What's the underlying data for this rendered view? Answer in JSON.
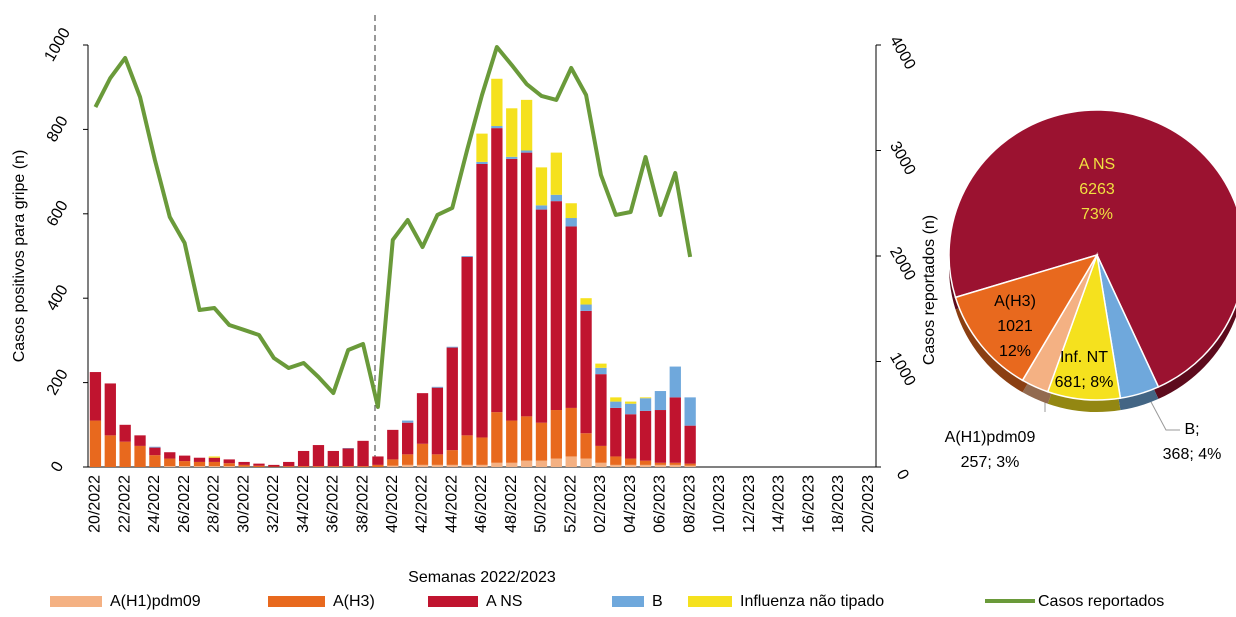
{
  "chart_data": [
    {
      "type": "bar",
      "stacked": true,
      "xlabel": "Semanas 2022/2023",
      "ylabel": "Casos positivos para gripe (n)",
      "y2label": "Casos reportados (n)",
      "categories": [
        "20/2022",
        null,
        "22/2022",
        null,
        "24/2022",
        null,
        "26/2022",
        null,
        "28/2022",
        null,
        "30/2022",
        null,
        "32/2022",
        null,
        "34/2022",
        null,
        "36/2022",
        null,
        "38/2022",
        null,
        "40/2022",
        null,
        "42/2022",
        null,
        "44/2022",
        null,
        "46/2022",
        null,
        "48/2022",
        null,
        "50/2022",
        null,
        "52/2022",
        null,
        "02/2023",
        null,
        "04/2023",
        null,
        "06/2023",
        null,
        "08/2023",
        null,
        "10/2023",
        null,
        "12/2023",
        null,
        "14/2023",
        null,
        "16/2023",
        null,
        "18/2023",
        null,
        "20/2023"
      ],
      "ylim": [
        0,
        1000
      ],
      "yticks": [
        0,
        200,
        400,
        600,
        800,
        1000
      ],
      "y2lim": [
        0,
        4000
      ],
      "y2ticks": [
        0,
        1000,
        2000,
        3000,
        4000
      ],
      "series": [
        {
          "name": "A(H1)pdm09",
          "color": "#f4b183",
          "values": [
            0,
            0,
            0,
            0,
            0,
            2,
            2,
            2,
            2,
            2,
            1,
            0,
            0,
            0,
            0,
            0,
            0,
            0,
            0,
            0,
            3,
            5,
            5,
            5,
            5,
            5,
            5,
            10,
            10,
            15,
            15,
            20,
            25,
            20,
            10,
            5,
            5,
            5,
            5,
            5,
            3,
            null,
            null,
            null,
            null,
            null,
            null,
            null,
            null,
            null,
            null,
            null,
            null
          ]
        },
        {
          "name": "A(H3)",
          "color": "#e8691e",
          "values": [
            110,
            75,
            60,
            50,
            28,
            18,
            12,
            10,
            10,
            7,
            4,
            3,
            1,
            2,
            2,
            2,
            2,
            2,
            2,
            5,
            15,
            25,
            50,
            25,
            35,
            70,
            65,
            120,
            100,
            105,
            90,
            115,
            115,
            60,
            40,
            20,
            15,
            10,
            5,
            5,
            5,
            null,
            null,
            null,
            null,
            null,
            null,
            null,
            null,
            null,
            null,
            null,
            null
          ]
        },
        {
          "name": "A NS",
          "color": "#c0142f",
          "values": [
            115,
            123,
            40,
            25,
            18,
            15,
            13,
            10,
            10,
            9,
            7,
            5,
            4,
            10,
            36,
            50,
            36,
            42,
            60,
            20,
            70,
            75,
            120,
            158,
            243,
            423,
            648,
            673,
            620,
            625,
            505,
            495,
            430,
            290,
            170,
            115,
            105,
            118,
            125,
            155,
            90,
            null,
            null,
            null,
            null,
            null,
            null,
            null,
            null,
            null,
            null,
            null,
            null
          ]
        },
        {
          "name": "B",
          "color": "#6fa8dc",
          "values": [
            0,
            0,
            0,
            0,
            2,
            0,
            0,
            0,
            0,
            0,
            0,
            0,
            0,
            0,
            0,
            0,
            0,
            1,
            0,
            0,
            0,
            5,
            0,
            2,
            2,
            2,
            5,
            5,
            5,
            5,
            10,
            15,
            20,
            15,
            15,
            15,
            25,
            30,
            45,
            73,
            67,
            null,
            null,
            null,
            null,
            null,
            null,
            null,
            null,
            null,
            null,
            null,
            null
          ]
        },
        {
          "name": "Influenza não tipado",
          "color": "#f5e11e",
          "values": [
            0,
            0,
            0,
            0,
            0,
            0,
            0,
            0,
            3,
            0,
            0,
            0,
            0,
            0,
            0,
            0,
            0,
            0,
            0,
            0,
            0,
            0,
            0,
            0,
            0,
            0,
            67,
            112,
            115,
            120,
            90,
            100,
            35,
            15,
            10,
            10,
            5,
            2,
            0,
            0,
            0,
            null,
            null,
            null,
            null,
            null,
            null,
            null,
            null,
            null,
            null,
            null,
            null
          ]
        },
        {
          "name": "Casos reportados",
          "color": "#6a9a3a",
          "type": "line",
          "axis": "y2",
          "values": [
            3412,
            3687,
            3877,
            3507,
            2910,
            2370,
            2123,
            1488,
            1507,
            1346,
            1299,
            1251,
            1033,
            938,
            986,
            853,
            701,
            1109,
            1166,
            569,
            2152,
            2341,
            2085,
            2389,
            2455,
            3005,
            3526,
            3981,
            3810,
            3630,
            3517,
            3479,
            3782,
            3526,
            2768,
            2389,
            2417,
            2938,
            2389,
            2787,
            1991,
            null,
            null,
            null,
            null,
            null,
            null,
            null,
            null,
            null,
            null,
            null,
            null
          ]
        }
      ]
    },
    {
      "type": "pie",
      "categories": [
        "A NS",
        "B;",
        "Inf. NT",
        "A(H1)pdm09",
        "A(H3)"
      ],
      "values": [
        6263,
        368,
        681,
        257,
        1021
      ],
      "value_labels": [
        [
          "6263",
          "73%"
        ],
        [
          "368; 4%"
        ],
        [
          "681; 8%"
        ],
        [
          "257; 3%"
        ],
        [
          "1021",
          "12%"
        ]
      ],
      "colors": [
        "#9b1230",
        "#6fa8dc",
        "#f5e11e",
        "#f4b183",
        "#e8691e"
      ]
    }
  ]
}
